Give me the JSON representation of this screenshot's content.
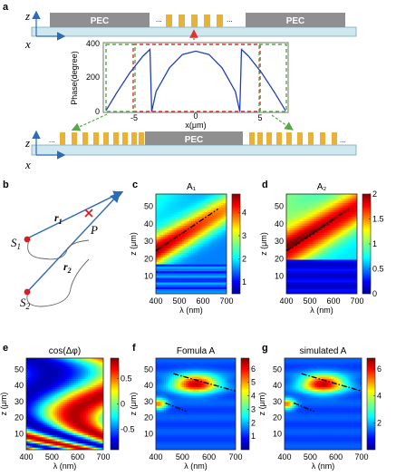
{
  "panel_labels": {
    "a": "a",
    "b": "b",
    "c": "c",
    "d": "d",
    "e": "e",
    "f": "f",
    "g": "g"
  },
  "panel_a": {
    "z_label": "z",
    "x_label": "x",
    "pec_left": "PEC",
    "pec_right": "PEC",
    "pec_bottom": "PEC",
    "ellipsis": "...",
    "plot": {
      "ylabel": "Phase(degree)",
      "xlabel": "x(μm)",
      "yticks": [
        "0",
        "200",
        "400"
      ],
      "xticks": [
        "-5",
        "0",
        "5"
      ]
    }
  },
  "panel_b": {
    "s1": "S",
    "s1_sub": "1",
    "s2": "S",
    "s2_sub": "2",
    "r1": "r",
    "r1_sub": "1",
    "r2": "r",
    "r2_sub": "2",
    "p": "P"
  },
  "colors": {
    "gold": "#e8b23a",
    "pec": "#8f8f8f",
    "substrate": "#cfe7ee",
    "curve": "#1f3fb5",
    "dash_red": "#e03030",
    "dash_green": "#5aa84a",
    "arrow_blue": "#2d6bb8",
    "point_red": "#d62020"
  },
  "chart_data": [
    {
      "id": "a-phase",
      "type": "line",
      "xlabel": "x(μm)",
      "ylabel": "Phase(degree)",
      "xlim": [
        -10.5,
        10.5
      ],
      "ylim": [
        0,
        400
      ],
      "series": [
        {
          "values_x": [
            -10.2,
            -9.0,
            -7.5,
            -6.0,
            -5.2,
            -5.0,
            -4.5,
            -3.0,
            -1.5,
            0,
            1.5,
            3.0,
            4.5,
            5.0,
            5.2,
            6.0,
            7.5,
            9.0,
            10.2
          ],
          "values_y": [
            5,
            110,
            230,
            330,
            370,
            0,
            120,
            260,
            340,
            360,
            340,
            260,
            120,
            0,
            370,
            330,
            230,
            110,
            5
          ]
        }
      ]
    },
    {
      "id": "c",
      "type": "heatmap",
      "title": "A₁",
      "xlabel": "λ (nm)",
      "ylabel": "z (μm)",
      "xlim": [
        400,
        700
      ],
      "ylim": [
        0,
        57
      ],
      "xticks": [
        400,
        500,
        600,
        700
      ],
      "yticks": [
        10,
        20,
        30,
        40,
        50
      ],
      "colorbar_ticks": [
        1,
        2,
        3,
        4
      ],
      "clim": [
        0.5,
        4.8
      ]
    },
    {
      "id": "d",
      "type": "heatmap",
      "title": "A₂",
      "xlabel": "λ (nm)",
      "ylabel": "z (μm)",
      "xlim": [
        400,
        700
      ],
      "ylim": [
        0,
        57
      ],
      "xticks": [
        400,
        500,
        600,
        700
      ],
      "yticks": [
        10,
        20,
        30,
        40,
        50
      ],
      "colorbar_ticks": [
        0,
        0.5,
        1,
        1.5,
        2
      ],
      "clim": [
        0,
        2
      ]
    },
    {
      "id": "e",
      "type": "heatmap",
      "title": "cos(Δφ)",
      "xlabel": "λ (nm)",
      "ylabel": "z (μm)",
      "xlim": [
        400,
        700
      ],
      "ylim": [
        0,
        57
      ],
      "xticks": [
        400,
        500,
        600,
        700
      ],
      "yticks": [
        10,
        20,
        30,
        40,
        50
      ],
      "colorbar_ticks": [
        -0.5,
        0,
        0.5
      ],
      "clim": [
        -0.9,
        0.9
      ]
    },
    {
      "id": "f",
      "type": "heatmap",
      "title": "Fomula A",
      "xlabel": "λ (nm)",
      "ylabel": "z (μm)",
      "xlim": [
        400,
        700
      ],
      "ylim": [
        0,
        57
      ],
      "xticks": [
        400,
        500,
        600,
        700
      ],
      "yticks": [
        10,
        20,
        30,
        40,
        50
      ],
      "colorbar_ticks": [
        1,
        2,
        3,
        4,
        5,
        6
      ],
      "clim": [
        0,
        6.8
      ]
    },
    {
      "id": "g",
      "type": "heatmap",
      "title": "simulated A",
      "xlabel": "λ (nm)",
      "ylabel": "z (μm)",
      "xlim": [
        400,
        700
      ],
      "ylim": [
        0,
        57
      ],
      "xticks": [
        400,
        500,
        600,
        700
      ],
      "yticks": [
        10,
        20,
        30,
        40,
        50
      ],
      "colorbar_ticks": [
        2,
        4,
        6
      ],
      "clim": [
        0,
        6.8
      ]
    }
  ]
}
